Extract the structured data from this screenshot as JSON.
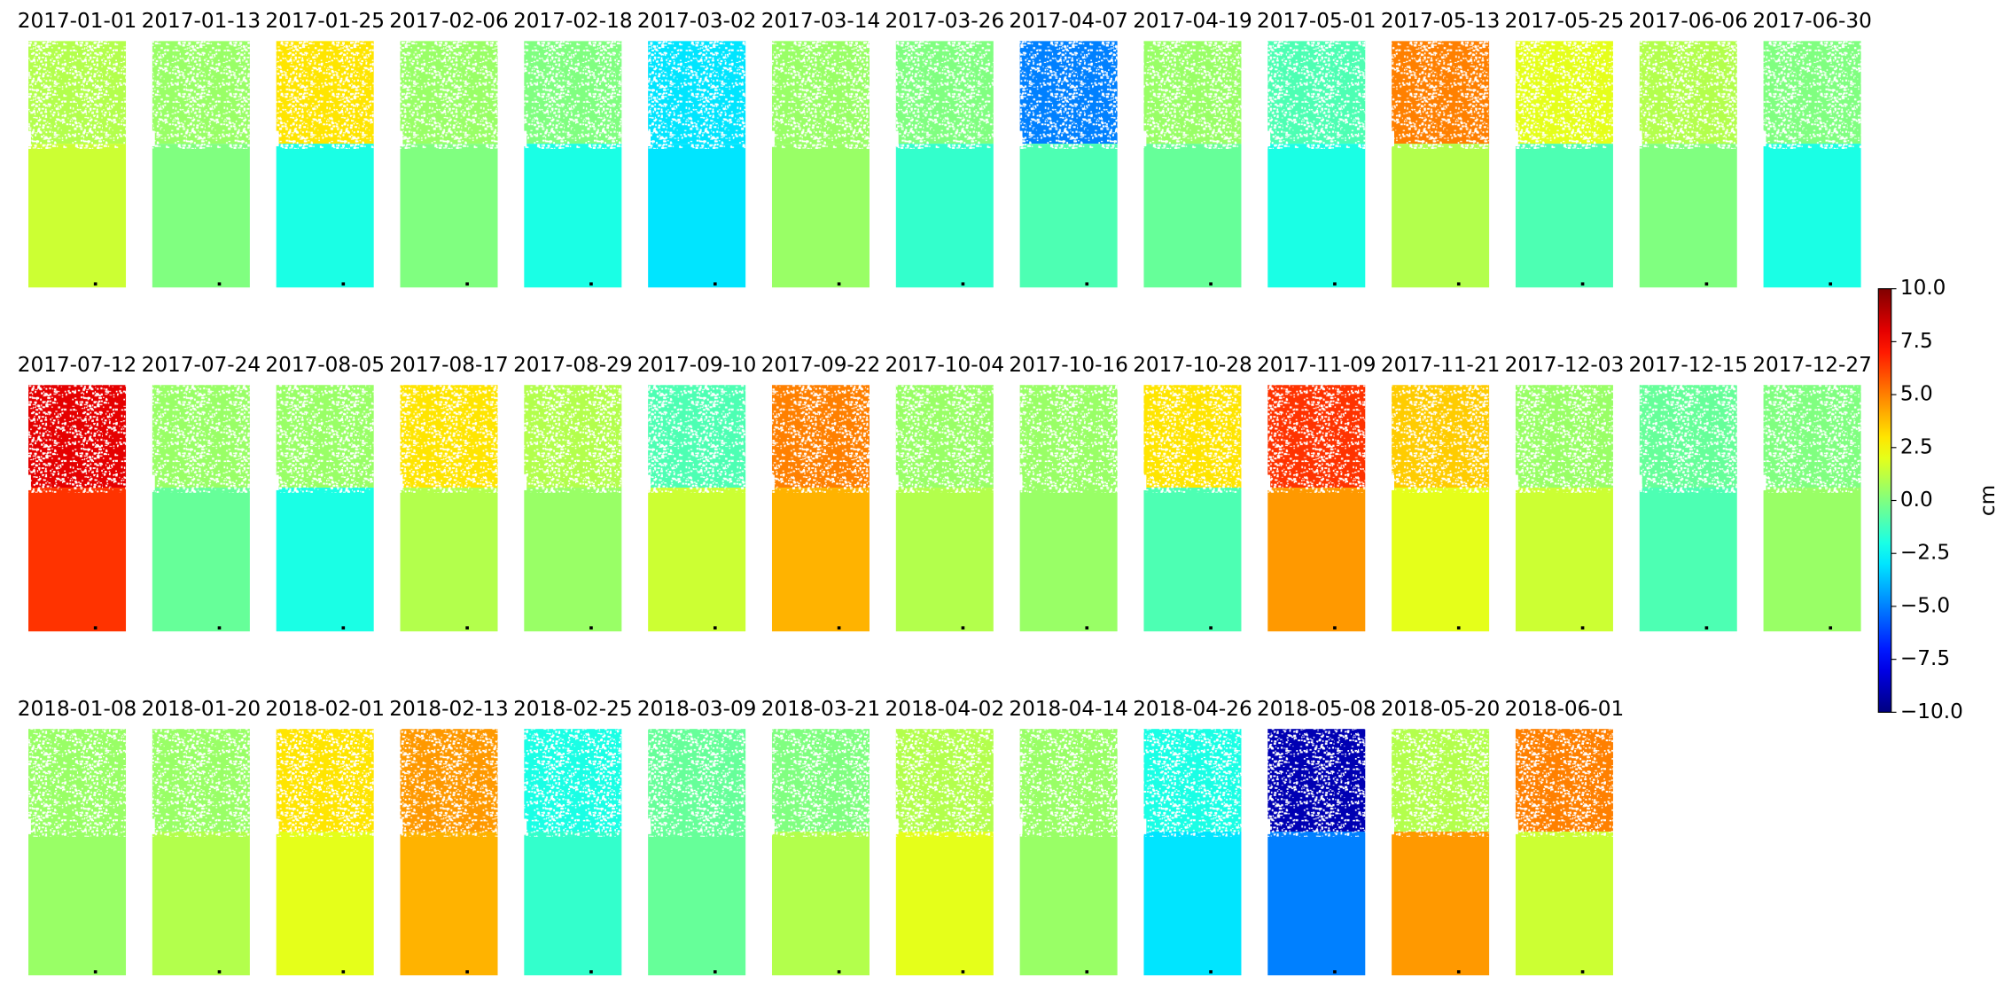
{
  "chart_data": {
    "type": "heatmap",
    "panels": [
      {
        "title": "2017-01-01",
        "values": [
          1,
          1.5
        ]
      },
      {
        "title": "2017-01-13",
        "values": [
          0.5,
          0
        ]
      },
      {
        "title": "2017-01-25",
        "values": [
          3,
          -2
        ]
      },
      {
        "title": "2017-02-06",
        "values": [
          0.5,
          0
        ]
      },
      {
        "title": "2017-02-18",
        "values": [
          0,
          -2
        ]
      },
      {
        "title": "2017-03-02",
        "values": [
          -3,
          -3
        ]
      },
      {
        "title": "2017-03-14",
        "values": [
          0.5,
          0.5
        ]
      },
      {
        "title": "2017-03-26",
        "values": [
          0,
          -1.5
        ]
      },
      {
        "title": "2017-04-07",
        "values": [
          -5,
          -1
        ]
      },
      {
        "title": "2017-04-19",
        "values": [
          0.5,
          -0.5
        ]
      },
      {
        "title": "2017-05-01",
        "values": [
          -1,
          -2
        ]
      },
      {
        "title": "2017-05-13",
        "values": [
          5,
          1
        ]
      },
      {
        "title": "2017-05-25",
        "values": [
          2,
          -1
        ]
      },
      {
        "title": "2017-06-06",
        "values": [
          1,
          0
        ]
      },
      {
        "title": "2017-06-30",
        "values": [
          0,
          -2
        ]
      },
      {
        "title": "2017-07-12",
        "values": [
          8,
          6.5
        ]
      },
      {
        "title": "2017-07-24",
        "values": [
          0.5,
          -0.5
        ]
      },
      {
        "title": "2017-08-05",
        "values": [
          0.5,
          -2
        ]
      },
      {
        "title": "2017-08-17",
        "values": [
          3,
          1
        ]
      },
      {
        "title": "2017-08-29",
        "values": [
          1,
          0.5
        ]
      },
      {
        "title": "2017-09-10",
        "values": [
          -1,
          1.5
        ]
      },
      {
        "title": "2017-09-22",
        "values": [
          5,
          4
        ]
      },
      {
        "title": "2017-10-04",
        "values": [
          0.5,
          1
        ]
      },
      {
        "title": "2017-10-16",
        "values": [
          0.5,
          0.5
        ]
      },
      {
        "title": "2017-10-28",
        "values": [
          3,
          -1
        ]
      },
      {
        "title": "2017-11-09",
        "values": [
          6.5,
          4.5
        ]
      },
      {
        "title": "2017-11-21",
        "values": [
          3.5,
          2
        ]
      },
      {
        "title": "2017-12-03",
        "values": [
          0.5,
          1.5
        ]
      },
      {
        "title": "2017-12-15",
        "values": [
          -0.5,
          -1
        ]
      },
      {
        "title": "2017-12-27",
        "values": [
          0,
          0.5
        ]
      },
      {
        "title": "2018-01-08",
        "values": [
          0.5,
          0.5
        ]
      },
      {
        "title": "2018-01-20",
        "values": [
          0.5,
          1
        ]
      },
      {
        "title": "2018-02-01",
        "values": [
          3,
          2
        ]
      },
      {
        "title": "2018-02-13",
        "values": [
          4.5,
          4
        ]
      },
      {
        "title": "2018-02-25",
        "values": [
          -2,
          -1.5
        ]
      },
      {
        "title": "2018-03-09",
        "values": [
          -0.5,
          -0.5
        ]
      },
      {
        "title": "2018-03-21",
        "values": [
          0,
          1
        ]
      },
      {
        "title": "2018-04-02",
        "values": [
          1,
          2
        ]
      },
      {
        "title": "2018-04-14",
        "values": [
          0.5,
          0.5
        ]
      },
      {
        "title": "2018-04-26",
        "values": [
          -2,
          -3
        ]
      },
      {
        "title": "2018-05-08",
        "values": [
          -9,
          -5
        ]
      },
      {
        "title": "2018-05-20",
        "values": [
          1,
          4.5
        ]
      },
      {
        "title": "2018-06-01",
        "values": [
          5,
          1.5
        ]
      }
    ],
    "colorbar": {
      "label": "cm",
      "colormap": "jet",
      "lim": [
        -10,
        10
      ],
      "ticks": [
        {
          "value": -10,
          "label": "−10.0"
        },
        {
          "value": -7.5,
          "label": "−7.5"
        },
        {
          "value": -5,
          "label": "−5.0"
        },
        {
          "value": -2.5,
          "label": "−2.5"
        },
        {
          "value": 0,
          "label": "0.0"
        },
        2.5,
        {
          "value": 5,
          "label": "5.0"
        },
        7.5,
        {
          "value": 10,
          "label": "10.0"
        }
      ]
    }
  }
}
